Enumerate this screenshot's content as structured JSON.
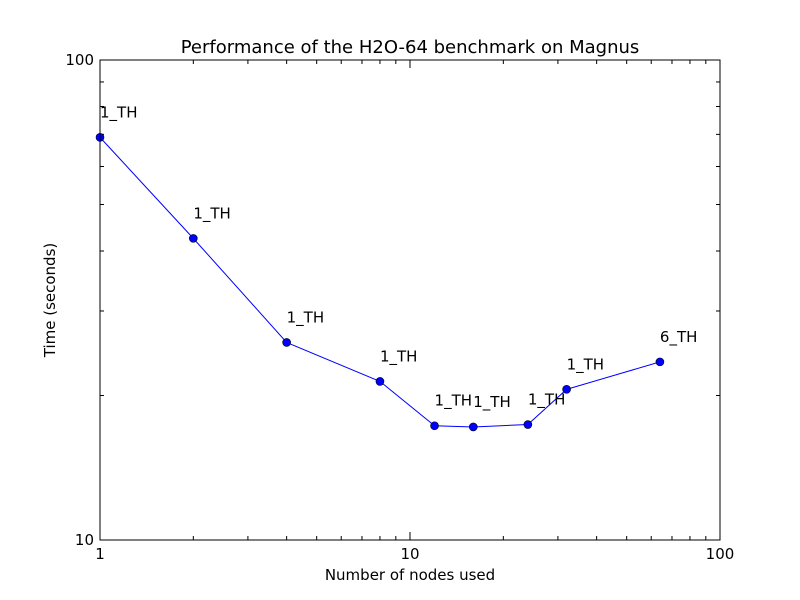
{
  "chart_data": {
    "type": "line",
    "title": "Performance of the H2O-64 benchmark on Magnus",
    "xlabel": "Number of nodes used",
    "ylabel": "Time (seconds)",
    "xscale": "log",
    "yscale": "log",
    "xlim": [
      1,
      100
    ],
    "ylim": [
      10,
      100
    ],
    "grid": false,
    "x_ticks": [
      {
        "value": 1,
        "label": "1"
      },
      {
        "value": 10,
        "label": "10"
      },
      {
        "value": 100,
        "label": "100"
      }
    ],
    "y_ticks": [
      {
        "value": 10,
        "label": "10"
      },
      {
        "value": 100,
        "label": "100"
      }
    ],
    "series": [
      {
        "color": "#0000ff",
        "marker": "circle",
        "points": [
          {
            "x": 1,
            "y": 69.0,
            "label": "1_TH"
          },
          {
            "x": 2,
            "y": 42.5,
            "label": "1_TH"
          },
          {
            "x": 4,
            "y": 25.8,
            "label": "1_TH"
          },
          {
            "x": 8,
            "y": 21.4,
            "label": "1_TH"
          },
          {
            "x": 12,
            "y": 17.3,
            "label": "1_TH"
          },
          {
            "x": 16,
            "y": 17.2,
            "label": "1_TH"
          },
          {
            "x": 24,
            "y": 17.4,
            "label": "1_TH"
          },
          {
            "x": 32,
            "y": 20.6,
            "label": "1_TH"
          },
          {
            "x": 64,
            "y": 23.5,
            "label": "6_TH"
          }
        ]
      }
    ]
  }
}
